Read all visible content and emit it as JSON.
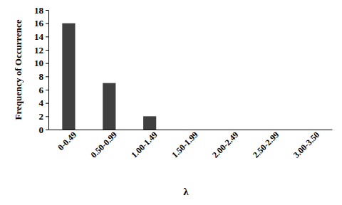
{
  "chart_data": {
    "type": "bar",
    "categories": [
      "0-0.49",
      "0.50-0.99",
      "1.00-1.49",
      "1.50-1.99",
      "2.00-2.49",
      "2.50-2.99",
      "3.00-3.50"
    ],
    "values": [
      16,
      7,
      2,
      0,
      0,
      0,
      0
    ],
    "color": "#404040",
    "ylim": [
      0,
      18
    ],
    "yticks": [
      0,
      2,
      4,
      6,
      8,
      10,
      12,
      14,
      16,
      18
    ],
    "x_label": "λ",
    "y_label": "Frequency of Occurrence"
  }
}
